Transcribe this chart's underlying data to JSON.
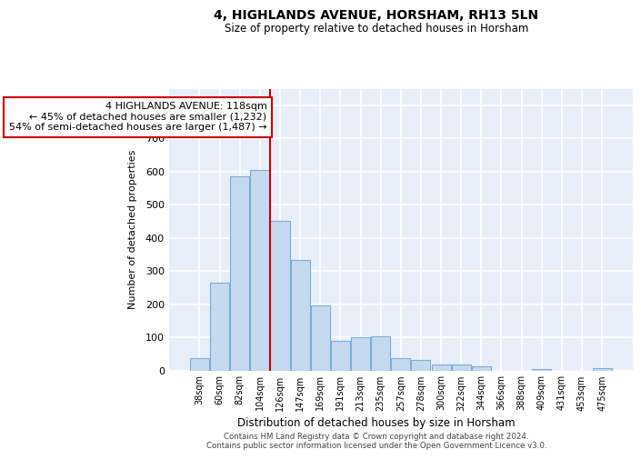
{
  "title": "4, HIGHLANDS AVENUE, HORSHAM, RH13 5LN",
  "subtitle": "Size of property relative to detached houses in Horsham",
  "xlabel": "Distribution of detached houses by size in Horsham",
  "ylabel": "Number of detached properties",
  "categories": [
    "38sqm",
    "60sqm",
    "82sqm",
    "104sqm",
    "126sqm",
    "147sqm",
    "169sqm",
    "191sqm",
    "213sqm",
    "235sqm",
    "257sqm",
    "278sqm",
    "300sqm",
    "322sqm",
    "344sqm",
    "366sqm",
    "388sqm",
    "409sqm",
    "431sqm",
    "453sqm",
    "475sqm"
  ],
  "values": [
    36,
    265,
    585,
    605,
    452,
    332,
    195,
    90,
    101,
    103,
    36,
    32,
    17,
    17,
    12,
    0,
    0,
    5,
    0,
    0,
    7
  ],
  "bar_color": "#c5d9f0",
  "bar_edge_color": "#7aafd4",
  "background_color": "#e8eef8",
  "grid_color": "#d0d8e8",
  "ylim": [
    0,
    850
  ],
  "yticks": [
    0,
    100,
    200,
    300,
    400,
    500,
    600,
    700,
    800
  ],
  "redline_index": 4,
  "redline_label": "4 HIGHLANDS AVENUE: 118sqm",
  "annotation_line1": "← 45% of detached houses are smaller (1,232)",
  "annotation_line2": "54% of semi-detached houses are larger (1,487) →",
  "footer_line1": "Contains HM Land Registry data © Crown copyright and database right 2024.",
  "footer_line2": "Contains public sector information licensed under the Open Government Licence v3.0."
}
